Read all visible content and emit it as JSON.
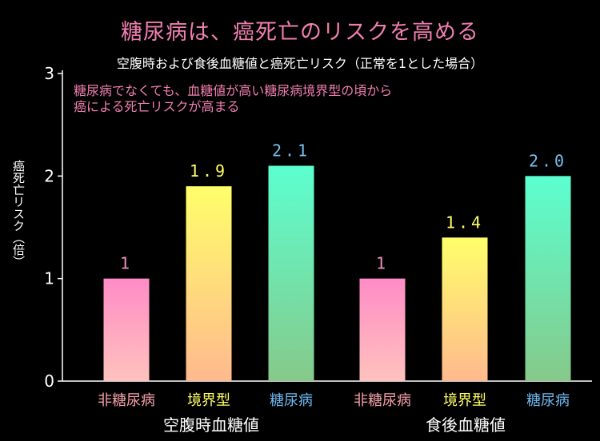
{
  "chart_data": {
    "type": "bar",
    "title": "糖尿病は、癌死亡のリスクを高める",
    "subtitle": "空腹時および食後血糖値と癌死亡リスク（正常を1とした場合）",
    "annotation": [
      "糖尿病でなくても、血糖値が高い糖尿病境界型の頃から",
      "癌による死亡リスクが高まる"
    ],
    "ylabel": "癌死亡リスク（倍）",
    "ylim": [
      0,
      3
    ],
    "yticks": [
      0,
      1,
      2,
      3
    ],
    "groups": [
      {
        "name": "空腹時血糖値",
        "bars": [
          {
            "category": "非糖尿病",
            "value": 1,
            "label": "1"
          },
          {
            "category": "境界型",
            "value": 1.9,
            "label": "1.9"
          },
          {
            "category": "糖尿病",
            "value": 2.1,
            "label": "2.1"
          }
        ]
      },
      {
        "name": "食後血糖値",
        "bars": [
          {
            "category": "非糖尿病",
            "value": 1,
            "label": "1"
          },
          {
            "category": "境界型",
            "value": 1.4,
            "label": "1.4"
          },
          {
            "category": "糖尿病",
            "value": 2.0,
            "label": "2.0"
          }
        ]
      }
    ],
    "colors": {
      "非糖尿病": {
        "top": "#ff8cc6",
        "bottom": "#ffc2bd",
        "label": "#f4a0a8"
      },
      "境界型": {
        "top": "#ffff6a",
        "bottom": "#ffb98e",
        "label": "#ffff66"
      },
      "糖尿病": {
        "top": "#5cffd0",
        "bottom": "#86c98a",
        "label": "#6fb8f0"
      }
    },
    "value_label_colors": {
      "非糖尿病": "#f090c0",
      "境界型": "#ffff66",
      "糖尿病": "#78c0f0"
    }
  }
}
